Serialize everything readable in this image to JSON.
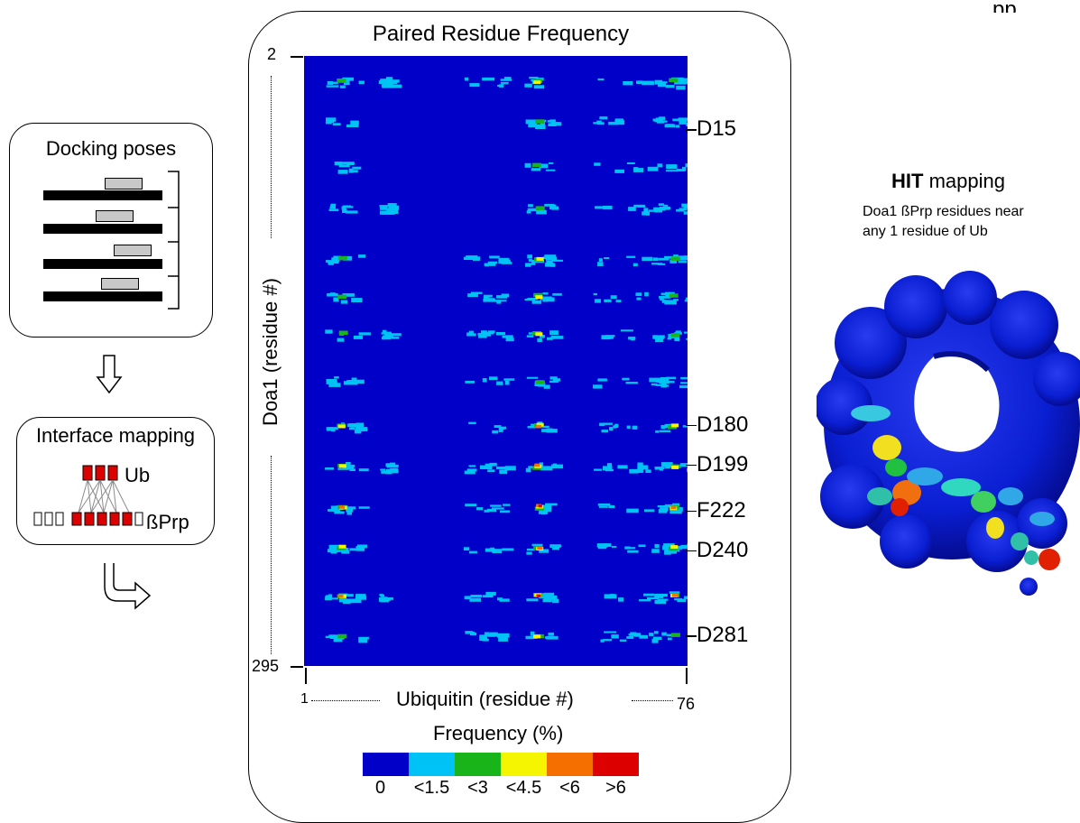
{
  "top_right_fragment": "pp",
  "left_panel": {
    "docking_title": "Docking poses",
    "interface_title": "Interface mapping",
    "ub_label": "Ub",
    "bprp_label": "ßPrp"
  },
  "heatmap_panel": {
    "title": "Paired Residue Frequency",
    "y_axis_label": "Doa1 (residue #)",
    "y_min_label": "2",
    "y_max_label": "295",
    "x_axis_label": "Ubiquitin (residue #)",
    "x_min_label": "1",
    "x_max_label": "76",
    "residue_markers": [
      {
        "label": "D15",
        "pos": 0.12
      },
      {
        "label": "D180",
        "pos": 0.605
      },
      {
        "label": "D199",
        "pos": 0.67
      },
      {
        "label": "F222",
        "pos": 0.745
      },
      {
        "label": "D240",
        "pos": 0.81
      },
      {
        "label": "D281",
        "pos": 0.95
      }
    ],
    "legend_title": "Frequency (%)",
    "legend": [
      {
        "label": "0",
        "color": "#0000c8"
      },
      {
        "label": "<1.5",
        "color": "#00c3f5"
      },
      {
        "label": "<3",
        "color": "#19b419"
      },
      {
        "label": "<4.5",
        "color": "#f5f500"
      },
      {
        "label": "<6",
        "color": "#f56e00"
      },
      {
        "label": ">6",
        "color": "#dc0000"
      }
    ]
  },
  "right_panel": {
    "heading_bold": "HIT",
    "heading_rest": " mapping",
    "caption_line1": "Doa1 ßPrp residues near",
    "caption_line2": "any 1 residue of Ub"
  },
  "colors": {
    "heatmap_background": "#0000c8",
    "protein_surface": "#0a1ed2",
    "ub_box_fill": "#dc0000",
    "pose_fill": "#c8c8c8"
  }
}
